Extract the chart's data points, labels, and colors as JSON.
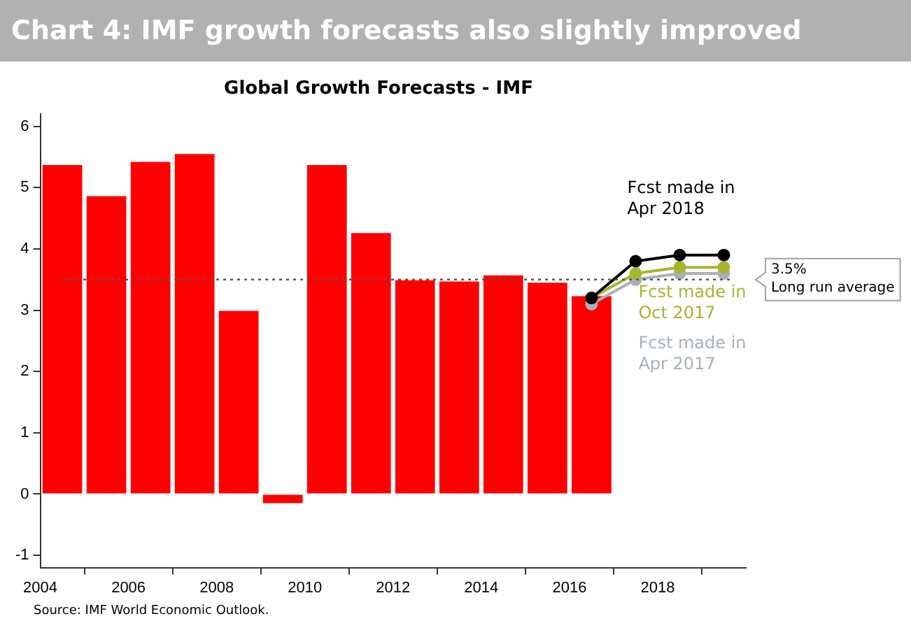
{
  "chart_data": {
    "type": "bar",
    "title": "Chart 4: IMF growth forecasts also slightly improved",
    "subtitle": "Global Growth Forecasts - IMF",
    "x": [
      2004.5,
      2005.5,
      2006.5,
      2007.5,
      2008.5,
      2009.5,
      2010.5,
      2011.5,
      2012.5,
      2013.5,
      2014.5,
      2015.5,
      2016.5
    ],
    "series": [
      {
        "color": "#ff0000",
        "values": [
          5.37,
          4.86,
          5.42,
          5.55,
          2.99,
          -0.15,
          5.37,
          4.26,
          3.49,
          3.47,
          3.57,
          3.45,
          3.23
        ]
      },
      {
        "type": "line",
        "name": "Fcst made in Apr 2018",
        "color": "#000000",
        "x": [
          2016.5,
          2017.5,
          2018.5,
          2019.5
        ],
        "values": [
          3.2,
          3.8,
          3.9,
          3.9
        ]
      },
      {
        "type": "line",
        "name": "Fcst made in Oct 2017",
        "color": "#a8b52c",
        "x": [
          2016.5,
          2017.5,
          2018.5,
          2019.5
        ],
        "values": [
          3.2,
          3.6,
          3.7,
          3.7
        ]
      },
      {
        "type": "line",
        "name": "Fcst made in Apr 2017",
        "color": "#a9b1b8",
        "x": [
          2016.5,
          2017.5,
          2018.5,
          2019.5
        ],
        "values": [
          3.1,
          3.5,
          3.6,
          3.6
        ]
      }
    ],
    "xlim": [
      2004,
      2020
    ],
    "xticks": [
      2004,
      2006,
      2008,
      2010,
      2012,
      2014,
      2016,
      2018
    ],
    "ylim": [
      -1.2,
      6.2
    ],
    "yticks": [
      -1,
      0,
      1,
      2,
      3,
      4,
      5,
      6
    ],
    "ref_lines": [
      {
        "axis": "y",
        "value": 3.5,
        "label": "3.5%\nLong run average",
        "color": "#555555",
        "line_style": "dotted"
      }
    ],
    "annotations": [
      "Source: IMF World Economic Outlook."
    ],
    "grid": false,
    "legend": false,
    "marker": "circle"
  }
}
